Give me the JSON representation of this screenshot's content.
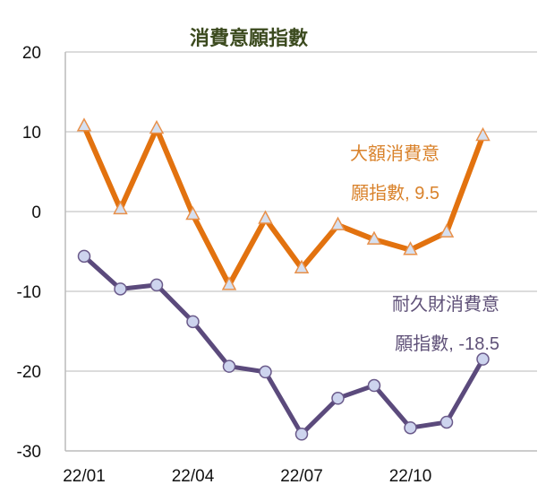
{
  "chart_data": {
    "type": "line",
    "title": "消費意願指數",
    "xlabel": "",
    "ylabel": "",
    "x": [
      "22/01",
      "22/02",
      "22/03",
      "22/04",
      "22/05",
      "22/06",
      "22/07",
      "22/08",
      "22/09",
      "22/10",
      "22/11",
      "22/12"
    ],
    "x_tick_labels": [
      "22/01",
      "22/04",
      "22/07",
      "22/10"
    ],
    "y_ticks": [
      20,
      10,
      0,
      -10,
      -20,
      -30
    ],
    "ylim": [
      -30,
      20
    ],
    "grid": true,
    "series": [
      {
        "name": "大額消費意願指數",
        "label_lines": [
          "大額消費意",
          "願指數, 9.5"
        ],
        "color": "#e2720f",
        "label_color": "#d9822b",
        "marker": "triangle",
        "values": [
          10.7,
          0.3,
          10.4,
          -0.4,
          -9.2,
          -0.9,
          -7.1,
          -1.7,
          -3.5,
          -4.8,
          -2.6,
          9.5
        ]
      },
      {
        "name": "耐久財消費意願指數",
        "label_lines": [
          "耐久財消費意",
          "願指數, -18.5"
        ],
        "color": "#5b4a7c",
        "label_color": "#5f5178",
        "marker": "circle",
        "values": [
          -5.6,
          -9.7,
          -9.2,
          -13.8,
          -19.4,
          -20.1,
          -27.9,
          -23.4,
          -21.8,
          -27.1,
          -26.4,
          -18.5
        ]
      }
    ]
  }
}
